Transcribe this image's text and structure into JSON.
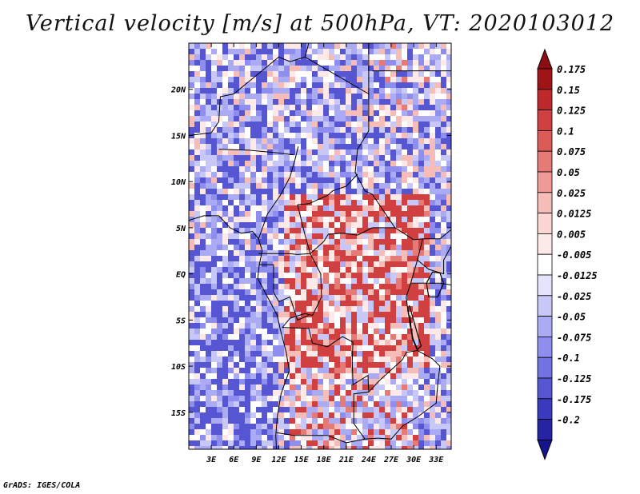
{
  "title": "Vertical velocity [m/s] at 500hPa, VT: 2020103012",
  "footer": "GrADS: IGES/COLA",
  "map": {
    "region": "Central Africa",
    "lon_range": [
      0,
      35
    ],
    "lat_range": [
      -19,
      25
    ],
    "lat_ticks": [
      {
        "value": 20,
        "label": "20N"
      },
      {
        "value": 15,
        "label": "15N"
      },
      {
        "value": 10,
        "label": "10N"
      },
      {
        "value": 5,
        "label": "5N"
      },
      {
        "value": 0,
        "label": "EQ"
      },
      {
        "value": -5,
        "label": "5S"
      },
      {
        "value": -10,
        "label": "10S"
      },
      {
        "value": -15,
        "label": "15S"
      }
    ],
    "lon_ticks": [
      {
        "value": 3,
        "label": "3E"
      },
      {
        "value": 6,
        "label": "6E"
      },
      {
        "value": 9,
        "label": "9E"
      },
      {
        "value": 12,
        "label": "12E"
      },
      {
        "value": 15,
        "label": "15E"
      },
      {
        "value": 18,
        "label": "18E"
      },
      {
        "value": 21,
        "label": "21E"
      },
      {
        "value": 24,
        "label": "24E"
      },
      {
        "value": 27,
        "label": "27E"
      },
      {
        "value": 30,
        "label": "30E"
      },
      {
        "value": 33,
        "label": "33E"
      }
    ]
  },
  "colorbar": {
    "levels": [
      {
        "label": "0.175",
        "color": "#a01418"
      },
      {
        "label": "0.15",
        "color": "#be2a2c"
      },
      {
        "label": "0.125",
        "color": "#d04040"
      },
      {
        "label": "0.1",
        "color": "#dc5a58"
      },
      {
        "label": "0.075",
        "color": "#e67a76"
      },
      {
        "label": "0.05",
        "color": "#ef9a96"
      },
      {
        "label": "0.025",
        "color": "#f6bcb8"
      },
      {
        "label": "0.0125",
        "color": "#fbd6d2"
      },
      {
        "label": "0.005",
        "color": "#fdeae8"
      },
      {
        "label": "-0.005",
        "color": "#ffffff"
      },
      {
        "label": "-0.0125",
        "color": "#e4e4fc"
      },
      {
        "label": "-0.025",
        "color": "#c8c8f8"
      },
      {
        "label": "-0.05",
        "color": "#ababf4"
      },
      {
        "label": "-0.075",
        "color": "#8e8eee"
      },
      {
        "label": "-0.1",
        "color": "#7272e2"
      },
      {
        "label": "-0.125",
        "color": "#5656d2"
      },
      {
        "label": "-0.175",
        "color": "#3a3abe"
      },
      {
        "label": "-0.2",
        "color": "#2424a4"
      }
    ],
    "top_color": "#8c0e12",
    "bottom_color": "#16168c"
  }
}
